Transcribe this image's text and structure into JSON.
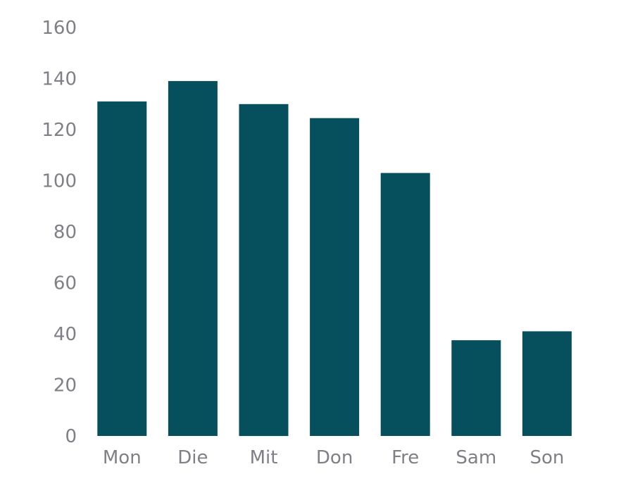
{
  "chart_data": {
    "type": "bar",
    "categories": [
      "Mon",
      "Die",
      "Mit",
      "Don",
      "Fre",
      "Sam",
      "Son"
    ],
    "values": [
      131,
      139,
      130,
      124.5,
      103,
      37.5,
      41
    ],
    "title": "",
    "xlabel": "",
    "ylabel": "",
    "ylim": [
      0,
      160
    ],
    "yticks": [
      0,
      20,
      40,
      60,
      80,
      100,
      120,
      140,
      160
    ],
    "grid": false,
    "legend": "none",
    "colors": {
      "bar": "#05505c",
      "tick_text": "#7f7f87"
    }
  }
}
